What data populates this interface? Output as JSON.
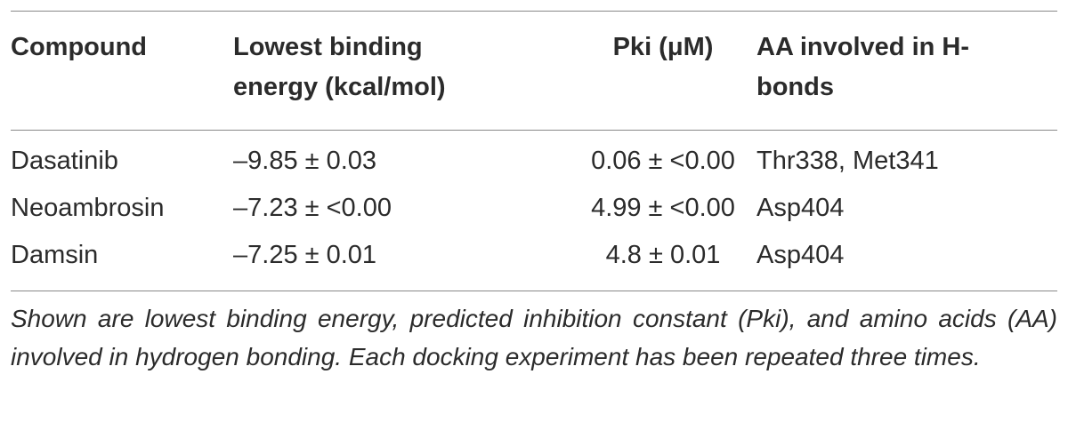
{
  "table": {
    "header": [
      "Compound",
      "Lowest binding energy (kcal/mol)",
      "Pki (μM)",
      "AA involved in H-bonds"
    ],
    "rows": [
      [
        "Dasatinib",
        "–9.85 ± 0.03",
        "0.06 ± <0.00",
        "Thr338, Met341"
      ],
      [
        "Neoambrosin",
        "–7.23 ± <0.00",
        "4.99 ± <0.00",
        "Asp404"
      ],
      [
        "Damsin",
        "–7.25 ± 0.01",
        "4.8 ± 0.01",
        "Asp404"
      ]
    ]
  },
  "footnote": "Shown are lowest binding energy, predicted inhibition constant (Pki), and amino acids (AA) involved in hydrogen bonding. Each docking experiment has been repeated three times."
}
